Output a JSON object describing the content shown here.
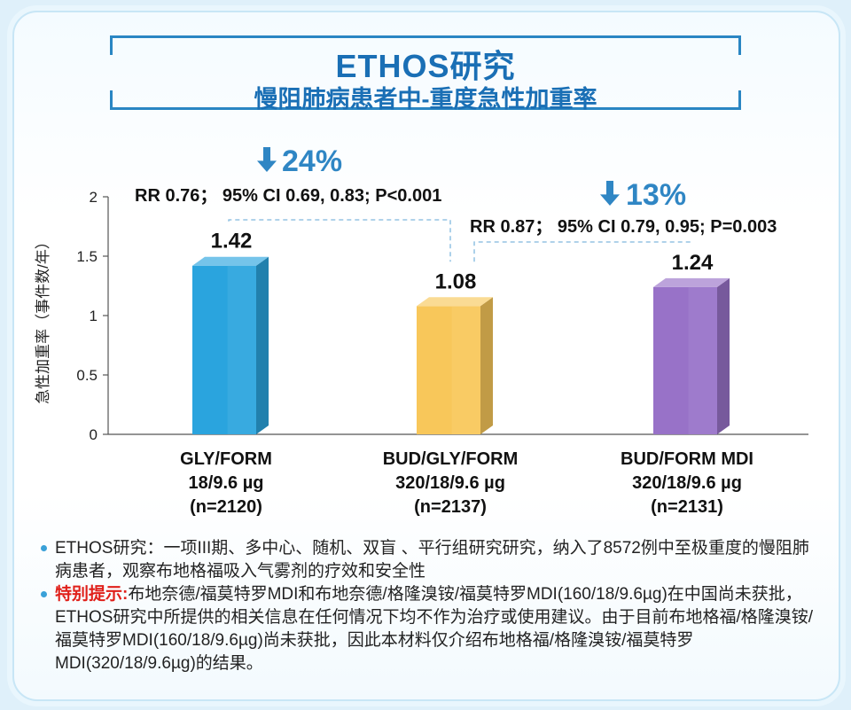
{
  "title": "ETHOS研究",
  "subtitle": "慢阻肺病患者中-重度急性加重率",
  "chart_data": {
    "type": "bar",
    "ylabel": "急性加重率（事件数/年）",
    "ylim": [
      0,
      2
    ],
    "yticks": [
      "0",
      "0.5",
      "1",
      "1.5",
      "2"
    ],
    "categories": [
      [
        "GLY/FORM",
        "18/9.6 µg",
        "(n=2120)"
      ],
      [
        "BUD/GLY/FORM",
        "320/18/9.6 µg",
        "(n=2137)"
      ],
      [
        "BUD/FORM MDI",
        "320/18/9.6 µg",
        "(n=2131)"
      ]
    ],
    "values": [
      1.42,
      1.08,
      1.24
    ],
    "value_labels": [
      "1.42",
      "1.08",
      "1.24"
    ],
    "colors": [
      "#2aa4de",
      "#f8c75a",
      "#9872c8"
    ],
    "comparisons": [
      {
        "reduction": "24%",
        "stats": "RR 0.76；  95% CI 0.69, 0.83; P<0.001"
      },
      {
        "reduction": "13%",
        "stats": "RR 0.87；  95% CI 0.79, 0.95; P=0.003"
      }
    ],
    "arrow_color": "#2f86c4"
  },
  "notes": {
    "note1": "ETHOS研究：一项III期、多中心、随机、双盲 、平行组研究研究，纳入了8572例中至极重度的慢阻肺病患者，观察布地格福吸入气雾剂的疗效和安全性",
    "note2_label": "特别提示:",
    "note2_text": "布地奈德/福莫特罗MDI和布地奈德/格隆溴铵/福莫特罗MDI(160/18/9.6µg)在中国尚未获批，ETHOS研究中所提供的相关信息在任何情况下均不作为治疗或使用建议。由于目前布地格福/格隆溴铵/福莫特罗MDI(160/18/9.6µg)尚未获批，因此本材料仅介绍布地格福/格隆溴铵/福莫特罗MDI(320/18/9.6µg)的结果。"
  }
}
